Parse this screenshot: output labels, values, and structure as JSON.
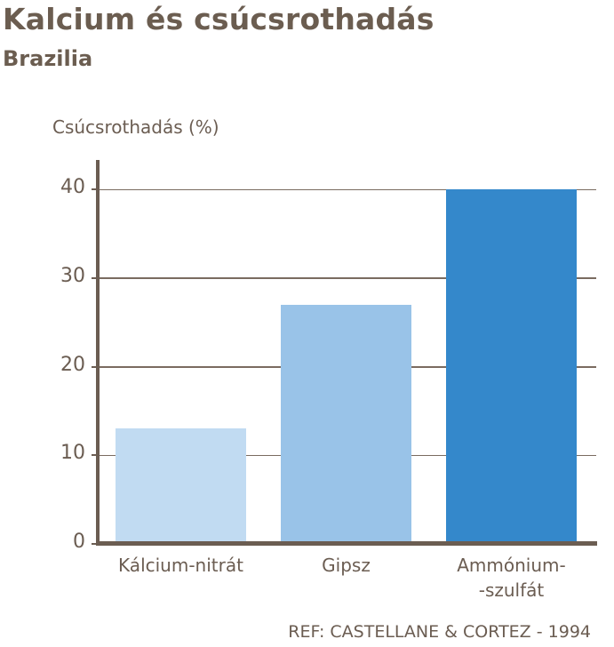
{
  "header": {
    "title": "Kalcium és csúcsrothadás",
    "subtitle": "Brazilia"
  },
  "footer": {
    "reference": "REF: CASTELLANE & CORTEZ - 1994"
  },
  "colors": {
    "text": "#6b5d52",
    "bar_1": "#c1dbf2",
    "bar_2": "#99c3e8",
    "bar_3": "#3488cb"
  },
  "chart_data": {
    "type": "bar",
    "title": "Kalcium és csúcsrothadás",
    "subtitle": "Brazilia",
    "xlabel": "",
    "ylabel": "Csúcsrothadás (%)",
    "categories": [
      "Kálcium-nitrát",
      "Gipsz",
      "Ammónium-szulfát"
    ],
    "category_labels_display": [
      [
        "Kálcium-nitrát"
      ],
      [
        "Gipsz"
      ],
      [
        "Ammónium-",
        "-szulfát"
      ]
    ],
    "values": [
      13,
      27,
      40
    ],
    "bar_colors": [
      "#c1dbf2",
      "#99c3e8",
      "#3488cb"
    ],
    "yticks": [
      0,
      10,
      20,
      30,
      40
    ],
    "ylim": [
      0,
      43
    ],
    "grid": true,
    "legend": null,
    "annotations": [
      "REF: CASTELLANE & CORTEZ - 1994"
    ]
  }
}
